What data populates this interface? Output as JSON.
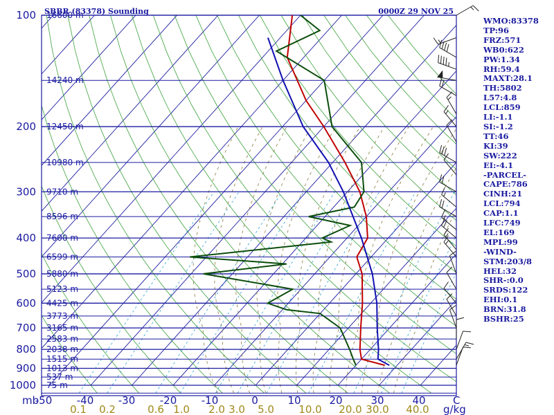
{
  "header": {
    "station": "SBBR (83378) Sounding",
    "time": "0000Z 29 NOV 25"
  },
  "sidebar": [
    "WMO:83378",
    "TP:96",
    "FRZ:571",
    "WB0:622",
    "PW:1.34",
    "RH:59.4",
    "MAXT:28.1",
    "TH:5802",
    "L57:4.8",
    "LCL:859",
    "LI:-1.1",
    "SI:-1.2",
    "TT:46",
    "KI:39",
    "SW:222",
    "EI:-4.1",
    "-PARCEL-",
    "CAPE:786",
    "CINH:21",
    "LCL:794",
    "CAP:1.1",
    "LFC:749",
    "EL:169",
    "MPL:99",
    "-WIND-",
    "STM:203/8",
    "HEL:32",
    "SHR-:0.0",
    "SRDS:122",
    "EHI:0.1",
    "BRN:31.8",
    "BSHR:25"
  ],
  "chart_data": {
    "type": "line",
    "title": "SBBR (83378) Sounding",
    "xlabel": "",
    "ylabel": "mb",
    "xlim": [
      -50,
      50
    ],
    "ylim": [
      1000,
      100
    ],
    "y_scale": "log",
    "grid": true,
    "pressure_ticks": [
      100,
      200,
      300,
      400,
      500,
      600,
      700,
      800,
      900,
      1000
    ],
    "temperature_ticks": [
      -50,
      -40,
      -30,
      -20,
      -10,
      0,
      10,
      20,
      30,
      40
    ],
    "temperature_tick_labels": [
      "-50",
      "-40",
      "-30",
      "-20",
      "-10",
      "0",
      "10",
      "20",
      "30",
      "40"
    ],
    "mixing_ratio_labels": [
      "0.1",
      "0.2",
      "0.6",
      "1.0",
      "2.0",
      "3.0",
      "5.0",
      "10.0",
      "20.0",
      "30.0",
      "40.0"
    ],
    "mixing_ratio_unit": "g/kg",
    "corner_label": "C",
    "height_labels": [
      {
        "p": 100,
        "text": "16600 m"
      },
      {
        "p": 150,
        "text": "14240 m"
      },
      {
        "p": 200,
        "text": "12450 m"
      },
      {
        "p": 250,
        "text": "10980 m"
      },
      {
        "p": 300,
        "text": "9710 m"
      },
      {
        "p": 350,
        "text": "8596 m"
      },
      {
        "p": 400,
        "text": "7600 m"
      },
      {
        "p": 450,
        "text": "6599 m"
      },
      {
        "p": 500,
        "text": "5880 m"
      },
      {
        "p": 550,
        "text": "5123 m"
      },
      {
        "p": 600,
        "text": "4425 m"
      },
      {
        "p": 650,
        "text": "3773 m"
      },
      {
        "p": 700,
        "text": "3165 m"
      },
      {
        "p": 750,
        "text": "2583 m"
      },
      {
        "p": 800,
        "text": "2038 m"
      },
      {
        "p": 850,
        "text": "1515 m"
      },
      {
        "p": 900,
        "text": "1013 m"
      },
      {
        "p": 950,
        "text": "537 m"
      },
      {
        "p": 1000,
        "text": "75 m"
      }
    ],
    "series": [
      {
        "color": "#c00000",
        "points": [
          {
            "p": 883,
            "t": 27
          },
          {
            "p": 850,
            "t": 20
          },
          {
            "p": 800,
            "t": 17.5
          },
          {
            "p": 700,
            "t": 13
          },
          {
            "p": 600,
            "t": 8
          },
          {
            "p": 500,
            "t": 1.5
          },
          {
            "p": 450,
            "t": -3.5
          },
          {
            "p": 400,
            "t": -5
          },
          {
            "p": 350,
            "t": -10
          },
          {
            "p": 300,
            "t": -17
          },
          {
            "p": 250,
            "t": -27
          },
          {
            "p": 200,
            "t": -40
          },
          {
            "p": 170,
            "t": -50
          },
          {
            "p": 130,
            "t": -64
          },
          {
            "p": 100,
            "t": -72
          }
        ]
      },
      {
        "color": "#0b4d0b",
        "points": [
          {
            "p": 883,
            "t": 20
          },
          {
            "p": 850,
            "t": 18
          },
          {
            "p": 800,
            "t": 15
          },
          {
            "p": 700,
            "t": 8
          },
          {
            "p": 640,
            "t": 0
          },
          {
            "p": 625,
            "t": -9
          },
          {
            "p": 600,
            "t": -15
          },
          {
            "p": 550,
            "t": -12
          },
          {
            "p": 500,
            "t": -37
          },
          {
            "p": 470,
            "t": -19
          },
          {
            "p": 450,
            "t": -44
          },
          {
            "p": 410,
            "t": -13
          },
          {
            "p": 400,
            "t": -16
          },
          {
            "p": 370,
            "t": -12
          },
          {
            "p": 350,
            "t": -24
          },
          {
            "p": 330,
            "t": -15
          },
          {
            "p": 300,
            "t": -16
          },
          {
            "p": 250,
            "t": -23
          },
          {
            "p": 200,
            "t": -38
          },
          {
            "p": 150,
            "t": -50
          },
          {
            "p": 125,
            "t": -68
          },
          {
            "p": 110,
            "t": -62
          },
          {
            "p": 100,
            "t": -70
          }
        ]
      },
      {
        "color": "#1010b0",
        "points": [
          {
            "p": 883,
            "t": 28.1
          },
          {
            "p": 850,
            "t": 24
          },
          {
            "p": 800,
            "t": 22
          },
          {
            "p": 700,
            "t": 17
          },
          {
            "p": 600,
            "t": 11.5
          },
          {
            "p": 500,
            "t": 4
          },
          {
            "p": 400,
            "t": -6.5
          },
          {
            "p": 300,
            "t": -21
          },
          {
            "p": 250,
            "t": -31
          },
          {
            "p": 200,
            "t": -45
          },
          {
            "p": 150,
            "t": -60
          },
          {
            "p": 115,
            "t": -73
          }
        ]
      }
    ],
    "wind_barbs": [
      {
        "p": 100,
        "dir": 60,
        "spd": 15
      },
      {
        "p": 115,
        "dir": 250,
        "spd": 15
      },
      {
        "p": 130,
        "dir": 300,
        "spd": 40
      },
      {
        "p": 140,
        "dir": 290,
        "spd": 45
      },
      {
        "p": 150,
        "dir": 280,
        "spd": 50
      },
      {
        "p": 165,
        "dir": 300,
        "spd": 20
      },
      {
        "p": 185,
        "dir": 330,
        "spd": 15
      },
      {
        "p": 200,
        "dir": 320,
        "spd": 15
      },
      {
        "p": 220,
        "dir": 330,
        "spd": 10
      },
      {
        "p": 250,
        "dir": 300,
        "spd": 30
      },
      {
        "p": 270,
        "dir": 320,
        "spd": 10
      },
      {
        "p": 300,
        "dir": 300,
        "spd": 20
      },
      {
        "p": 330,
        "dir": 310,
        "spd": 15
      },
      {
        "p": 350,
        "dir": 300,
        "spd": 20
      },
      {
        "p": 380,
        "dir": 310,
        "spd": 15
      },
      {
        "p": 400,
        "dir": 310,
        "spd": 20
      },
      {
        "p": 430,
        "dir": 320,
        "spd": 15
      },
      {
        "p": 450,
        "dir": 320,
        "spd": 15
      },
      {
        "p": 500,
        "dir": 340,
        "spd": 10
      },
      {
        "p": 550,
        "dir": 330,
        "spd": 10
      },
      {
        "p": 600,
        "dir": 320,
        "spd": 10
      },
      {
        "p": 650,
        "dir": 330,
        "spd": 10
      },
      {
        "p": 700,
        "dir": 340,
        "spd": 10
      },
      {
        "p": 750,
        "dir": 0,
        "spd": 10
      },
      {
        "p": 800,
        "dir": 20,
        "spd": 10
      },
      {
        "p": 850,
        "dir": 30,
        "spd": 15
      },
      {
        "p": 883,
        "dir": 20,
        "spd": 10
      }
    ]
  }
}
